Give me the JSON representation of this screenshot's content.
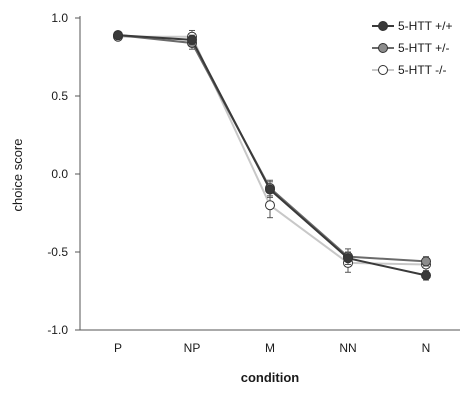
{
  "chart_data": {
    "type": "line",
    "title": "",
    "xlabel": "condition",
    "ylabel": "choice score",
    "categories": [
      "P",
      "NP",
      "M",
      "NN",
      "N"
    ],
    "ylim": [
      -1.0,
      1.0
    ],
    "yticks": [
      "1.0",
      "0.5",
      "0.0",
      "-0.5",
      "-1.0"
    ],
    "ytick_values": [
      1.0,
      0.5,
      0.0,
      -0.5,
      -1.0
    ],
    "legend_position": "top-right",
    "grid": false,
    "series": [
      {
        "name": "5-HTT +/+",
        "values": [
          0.89,
          0.86,
          -0.1,
          -0.54,
          -0.65
        ],
        "errors": [
          0.02,
          0.03,
          0.05,
          0.04,
          0.03
        ],
        "line_color": "#3a3a3a",
        "marker_fill": "#3a3a3a"
      },
      {
        "name": "5-HTT +/-",
        "values": [
          0.89,
          0.84,
          -0.09,
          -0.53,
          -0.56
        ],
        "errors": [
          0.02,
          0.04,
          0.05,
          0.05,
          0.03
        ],
        "line_color": "#6a6a6a",
        "marker_fill": "#8c8c8c"
      },
      {
        "name": "5-HTT -/-",
        "values": [
          0.88,
          0.88,
          -0.2,
          -0.57,
          -0.58
        ],
        "errors": [
          0.02,
          0.04,
          0.08,
          0.06,
          0.04
        ],
        "line_color": "#c8c8c8",
        "marker_fill": "#ffffff"
      }
    ]
  }
}
